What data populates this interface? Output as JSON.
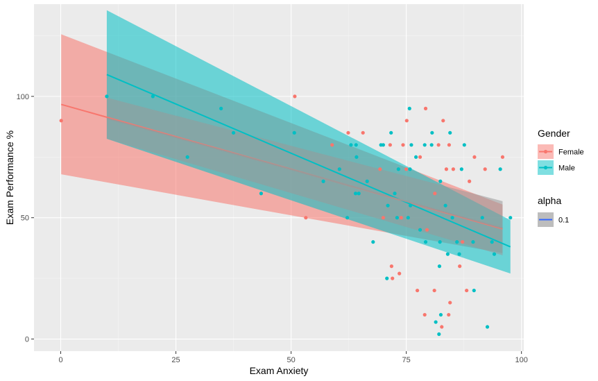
{
  "chart_data": {
    "type": "scatter",
    "xlabel": "Exam Anxiety",
    "ylabel": "Exam Performance %",
    "xlim": [
      -5.8,
      100.5
    ],
    "ylim": [
      -5,
      138
    ],
    "x_ticks": [
      0,
      25,
      50,
      75,
      100
    ],
    "y_ticks": [
      0,
      50,
      100
    ],
    "grid": true,
    "legend_position": "right",
    "legends": [
      {
        "title": "Gender",
        "entries": [
          {
            "label": "Female",
            "color": "#F8766D"
          },
          {
            "label": "Male",
            "color": "#00BFC4"
          }
        ]
      },
      {
        "title": "alpha",
        "entries": [
          {
            "label": "0.1",
            "color": "#3366FF"
          }
        ]
      }
    ],
    "series": [
      {
        "name": "Female",
        "color": "#F8766D",
        "fill": "#F8766D",
        "points": [
          [
            0.1,
            90
          ],
          [
            50.8,
            100
          ],
          [
            53.2,
            50
          ],
          [
            58.9,
            80
          ],
          [
            62.4,
            85
          ],
          [
            65.6,
            85
          ],
          [
            69.3,
            70
          ],
          [
            70,
            50
          ],
          [
            71.5,
            80
          ],
          [
            71.8,
            30
          ],
          [
            72,
            25
          ],
          [
            73.5,
            27
          ],
          [
            73.9,
            50
          ],
          [
            74.3,
            80
          ],
          [
            75,
            70
          ],
          [
            75.1,
            90
          ],
          [
            77.4,
            20
          ],
          [
            78,
            75
          ],
          [
            79.2,
            95
          ],
          [
            79,
            10
          ],
          [
            79.5,
            45
          ],
          [
            81.1,
            20
          ],
          [
            81.2,
            60
          ],
          [
            82,
            80
          ],
          [
            82.7,
            5
          ],
          [
            83,
            90
          ],
          [
            83.7,
            70
          ],
          [
            84.2,
            10
          ],
          [
            84.3,
            80
          ],
          [
            84.5,
            15
          ],
          [
            85.2,
            70
          ],
          [
            86.6,
            30
          ],
          [
            87.2,
            40
          ],
          [
            88.1,
            20
          ],
          [
            88.7,
            65
          ],
          [
            89.8,
            75
          ],
          [
            92.1,
            70
          ],
          [
            95.9,
            75
          ]
        ],
        "fit": {
          "x": [
            0.1,
            95.9
          ],
          "y": [
            96.7,
            45.4
          ],
          "ci_lower": [
            67.9,
            35.4
          ],
          "ci_upper": [
            125.6,
            55.4
          ]
        }
      },
      {
        "name": "Male",
        "color": "#00BFC4",
        "fill": "#00BFC4",
        "points": [
          [
            10,
            100
          ],
          [
            20,
            100
          ],
          [
            27.5,
            75
          ],
          [
            34.8,
            95
          ],
          [
            37.5,
            85
          ],
          [
            43.5,
            60
          ],
          [
            50.7,
            85
          ],
          [
            57,
            65
          ],
          [
            60.5,
            70
          ],
          [
            62.2,
            50
          ],
          [
            63,
            80
          ],
          [
            64,
            60
          ],
          [
            64.7,
            60
          ],
          [
            64.2,
            75
          ],
          [
            64.1,
            80
          ],
          [
            66.5,
            65
          ],
          [
            67.8,
            40
          ],
          [
            69.5,
            80
          ],
          [
            70,
            80
          ],
          [
            70.8,
            25
          ],
          [
            71,
            55
          ],
          [
            71.7,
            85
          ],
          [
            72.5,
            60
          ],
          [
            73,
            50
          ],
          [
            73.3,
            70
          ],
          [
            75.4,
            50
          ],
          [
            75.7,
            95
          ],
          [
            75.8,
            70
          ],
          [
            75.9,
            55
          ],
          [
            76.1,
            80
          ],
          [
            77.1,
            75
          ],
          [
            78,
            45
          ],
          [
            79,
            80
          ],
          [
            79.2,
            40
          ],
          [
            80.5,
            80
          ],
          [
            80.6,
            85
          ],
          [
            81.4,
            7
          ],
          [
            82.1,
            2
          ],
          [
            82.2,
            30
          ],
          [
            82.3,
            40
          ],
          [
            82.4,
            65
          ],
          [
            82.5,
            10
          ],
          [
            83.5,
            55
          ],
          [
            84,
            35
          ],
          [
            84.5,
            85
          ],
          [
            85,
            50
          ],
          [
            86,
            40
          ],
          [
            86.5,
            35
          ],
          [
            87,
            70
          ],
          [
            87.6,
            80
          ],
          [
            89.5,
            40
          ],
          [
            89.7,
            20
          ],
          [
            91.5,
            50
          ],
          [
            92.6,
            5
          ],
          [
            93.6,
            40
          ],
          [
            94.1,
            35
          ],
          [
            95.4,
            70
          ],
          [
            97.6,
            50
          ]
        ],
        "fit": {
          "x": [
            10,
            97.6
          ],
          "y": [
            109,
            38
          ],
          "ci_lower": [
            82.5,
            27
          ],
          "ci_upper": [
            135.5,
            49
          ]
        }
      },
      {
        "name": "0.1",
        "color": "#999999",
        "fill": "#999999",
        "points": [],
        "fit": {
          "x": [
            10,
            95.9
          ],
          "y": [
            91,
            45.7
          ],
          "ci_lower": [
            82.5,
            34.5
          ],
          "ci_upper": [
            99.5,
            56.8
          ]
        }
      }
    ]
  }
}
